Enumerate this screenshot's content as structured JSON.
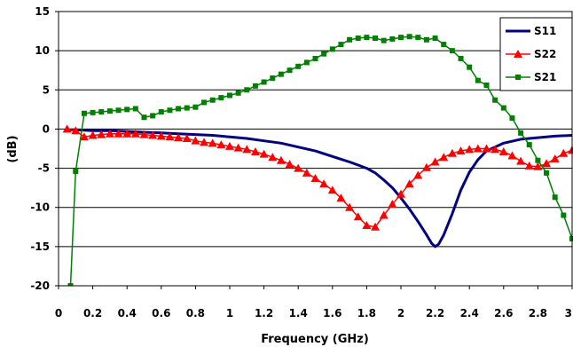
{
  "chart_data": {
    "type": "line",
    "title": "",
    "xlabel": "Frequency (GHz)",
    "ylabel": "(dB)",
    "xlim": [
      0,
      3
    ],
    "ylim": [
      -20,
      15
    ],
    "x_ticks": [
      "0",
      "0.2",
      "0.4",
      "0.6",
      "0.8",
      "1",
      "1.2",
      "1.4",
      "1.6",
      "1.8",
      "2",
      "2.2",
      "2.4",
      "2.6",
      "2.8",
      "3"
    ],
    "x_tick_values": [
      0,
      0.2,
      0.4,
      0.6,
      0.8,
      1.0,
      1.2,
      1.4,
      1.6,
      1.8,
      2.0,
      2.2,
      2.4,
      2.6,
      2.8,
      3.0
    ],
    "y_ticks": [
      "15",
      "10",
      "5",
      "0",
      "-5",
      "-10",
      "-15",
      "-20"
    ],
    "y_tick_values": [
      15,
      10,
      5,
      0,
      -5,
      -10,
      -15,
      -20
    ],
    "grid": "horizontal",
    "legend": "top-right",
    "series": [
      {
        "name": "S11",
        "color": "#000080",
        "marker": "none",
        "x": [
          0.05,
          0.1,
          0.2,
          0.3,
          0.4,
          0.5,
          0.6,
          0.7,
          0.8,
          0.9,
          1.0,
          1.1,
          1.2,
          1.3,
          1.4,
          1.5,
          1.6,
          1.7,
          1.75,
          1.8,
          1.85,
          1.9,
          1.95,
          2.0,
          2.05,
          2.1,
          2.15,
          2.18,
          2.2,
          2.22,
          2.25,
          2.3,
          2.35,
          2.4,
          2.45,
          2.5,
          2.6,
          2.7,
          2.8,
          2.9,
          3.0
        ],
        "y": [
          -0.1,
          -0.1,
          -0.2,
          -0.2,
          -0.3,
          -0.4,
          -0.5,
          -0.6,
          -0.7,
          -0.8,
          -1.0,
          -1.2,
          -1.5,
          -1.8,
          -2.3,
          -2.8,
          -3.5,
          -4.2,
          -4.6,
          -5.0,
          -5.6,
          -6.5,
          -7.5,
          -8.8,
          -10.2,
          -11.8,
          -13.5,
          -14.6,
          -15.0,
          -14.7,
          -13.5,
          -10.8,
          -7.8,
          -5.5,
          -3.9,
          -2.8,
          -1.8,
          -1.3,
          -1.1,
          -0.9,
          -0.8
        ]
      },
      {
        "name": "S22",
        "color": "#ff0000",
        "marker": "triangle",
        "x": [
          0.05,
          0.1,
          0.15,
          0.2,
          0.25,
          0.3,
          0.35,
          0.4,
          0.45,
          0.5,
          0.55,
          0.6,
          0.65,
          0.7,
          0.75,
          0.8,
          0.85,
          0.9,
          0.95,
          1.0,
          1.05,
          1.1,
          1.15,
          1.2,
          1.25,
          1.3,
          1.35,
          1.4,
          1.45,
          1.5,
          1.55,
          1.6,
          1.65,
          1.7,
          1.75,
          1.8,
          1.85,
          1.9,
          1.95,
          2.0,
          2.05,
          2.1,
          2.15,
          2.2,
          2.25,
          2.3,
          2.35,
          2.4,
          2.45,
          2.5,
          2.55,
          2.6,
          2.65,
          2.7,
          2.75,
          2.8,
          2.85,
          2.9,
          2.95,
          3.0
        ],
        "y": [
          0.0,
          -0.2,
          -1.0,
          -0.8,
          -0.7,
          -0.6,
          -0.6,
          -0.6,
          -0.6,
          -0.7,
          -0.8,
          -0.9,
          -1.0,
          -1.1,
          -1.2,
          -1.5,
          -1.7,
          -1.8,
          -2.0,
          -2.2,
          -2.4,
          -2.6,
          -2.9,
          -3.2,
          -3.6,
          -4.0,
          -4.5,
          -5.0,
          -5.6,
          -6.3,
          -7.0,
          -7.8,
          -8.8,
          -10.0,
          -11.2,
          -12.3,
          -12.5,
          -11.0,
          -9.6,
          -8.3,
          -7.0,
          -5.9,
          -4.9,
          -4.2,
          -3.6,
          -3.1,
          -2.8,
          -2.6,
          -2.5,
          -2.5,
          -2.6,
          -2.9,
          -3.4,
          -4.1,
          -4.7,
          -4.8,
          -4.4,
          -3.8,
          -3.1,
          -2.7
        ]
      },
      {
        "name": "S21",
        "color": "#008000",
        "marker": "square",
        "x": [
          0.07,
          0.1,
          0.15,
          0.2,
          0.25,
          0.3,
          0.35,
          0.4,
          0.45,
          0.5,
          0.55,
          0.6,
          0.65,
          0.7,
          0.75,
          0.8,
          0.85,
          0.9,
          0.95,
          1.0,
          1.05,
          1.1,
          1.15,
          1.2,
          1.25,
          1.3,
          1.35,
          1.4,
          1.45,
          1.5,
          1.55,
          1.6,
          1.65,
          1.7,
          1.75,
          1.8,
          1.85,
          1.9,
          1.95,
          2.0,
          2.05,
          2.1,
          2.15,
          2.2,
          2.25,
          2.3,
          2.35,
          2.4,
          2.45,
          2.5,
          2.55,
          2.6,
          2.65,
          2.7,
          2.75,
          2.8,
          2.85,
          2.9,
          2.95,
          3.0
        ],
        "y": [
          -20.0,
          -5.4,
          2.0,
          2.1,
          2.2,
          2.3,
          2.4,
          2.5,
          2.6,
          1.5,
          1.7,
          2.2,
          2.4,
          2.6,
          2.7,
          2.8,
          3.4,
          3.7,
          4.0,
          4.3,
          4.6,
          5.0,
          5.5,
          6.0,
          6.5,
          7.0,
          7.5,
          8.0,
          8.5,
          9.0,
          9.6,
          10.2,
          10.8,
          11.4,
          11.6,
          11.7,
          11.6,
          11.3,
          11.5,
          11.7,
          11.8,
          11.7,
          11.4,
          11.6,
          10.8,
          10.0,
          9.0,
          7.9,
          6.2,
          5.6,
          3.7,
          2.7,
          1.4,
          -0.5,
          -2.0,
          -4.0,
          -5.6,
          -8.7,
          -11.0,
          -14.0
        ]
      }
    ]
  }
}
